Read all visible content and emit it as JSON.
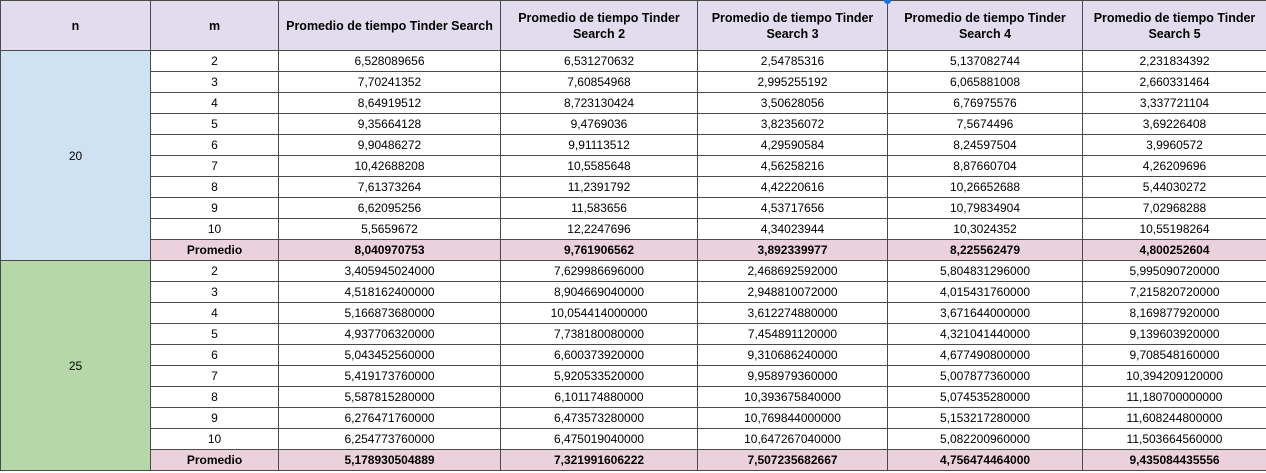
{
  "headers": {
    "n": "n",
    "m": "m",
    "cols": [
      "Promedio de tiempo Tinder Search",
      "Promedio de tiempo Tinder Search 2",
      "Promedio de tiempo Tinder Search 3",
      "Promedio de tiempo Tinder Search 4",
      "Promedio de tiempo Tinder Search 5"
    ]
  },
  "groups": [
    {
      "n": "20",
      "rows": [
        {
          "m": "2",
          "v": [
            "6,528089656",
            "6,531270632",
            "2,54785316",
            "5,137082744",
            "2,231834392"
          ]
        },
        {
          "m": "3",
          "v": [
            "7,70241352",
            "7,60854968",
            "2,995255192",
            "6,065881008",
            "2,660331464"
          ]
        },
        {
          "m": "4",
          "v": [
            "8,64919512",
            "8,723130424",
            "3,50628056",
            "6,76975576",
            "3,337721104"
          ]
        },
        {
          "m": "5",
          "v": [
            "9,35664128",
            "9,4769036",
            "3,82356072",
            "7,5674496",
            "3,69226408"
          ]
        },
        {
          "m": "6",
          "v": [
            "9,90486272",
            "9,91113512",
            "4,29590584",
            "8,24597504",
            "3,9960572"
          ]
        },
        {
          "m": "7",
          "v": [
            "10,42688208",
            "10,5585648",
            "4,56258216",
            "8,87660704",
            "4,26209696"
          ]
        },
        {
          "m": "8",
          "v": [
            "7,61373264",
            "11,2391792",
            "4,42220616",
            "10,26652688",
            "5,44030272"
          ]
        },
        {
          "m": "9",
          "v": [
            "6,62095256",
            "11,583656",
            "4,53717656",
            "10,79834904",
            "7,02968288"
          ]
        },
        {
          "m": "10",
          "v": [
            "5,5659672",
            "12,2247696",
            "4,34023944",
            "10,3024352",
            "10,55198264"
          ]
        }
      ],
      "avg_label": "Promedio",
      "avg": [
        "8,040970753",
        "9,761906562",
        "3,892339977",
        "8,225562479",
        "4,800252604"
      ]
    },
    {
      "n": "25",
      "rows": [
        {
          "m": "2",
          "v": [
            "3,405945024000",
            "7,629986696000",
            "2,468692592000",
            "5,804831296000",
            "5,995090720000"
          ]
        },
        {
          "m": "3",
          "v": [
            "4,518162400000",
            "8,904669040000",
            "2,948810072000",
            "4,015431760000",
            "7,215820720000"
          ]
        },
        {
          "m": "4",
          "v": [
            "5,166873680000",
            "10,054414000000",
            "3,612274880000",
            "3,671644000000",
            "8,169877920000"
          ]
        },
        {
          "m": "5",
          "v": [
            "4,937706320000",
            "7,738180080000",
            "7,454891120000",
            "4,321041440000",
            "9,139603920000"
          ]
        },
        {
          "m": "6",
          "v": [
            "5,043452560000",
            "6,600373920000",
            "9,310686240000",
            "4,677490800000",
            "9,708548160000"
          ]
        },
        {
          "m": "7",
          "v": [
            "5,419173760000",
            "5,920533520000",
            "9,958979360000",
            "5,007877360000",
            "10,394209120000"
          ]
        },
        {
          "m": "8",
          "v": [
            "5,587815280000",
            "6,101174880000",
            "10,393675840000",
            "5,074535280000",
            "11,180700000000"
          ]
        },
        {
          "m": "9",
          "v": [
            "6,276471760000",
            "6,473573280000",
            "10,769844000000",
            "5,153217280000",
            "11,608244800000"
          ]
        },
        {
          "m": "10",
          "v": [
            "6,254773760000",
            "6,475019040000",
            "10,647267040000",
            "5,082200960000",
            "11,503664560000"
          ]
        }
      ],
      "avg_label": "Promedio",
      "avg": [
        "5,178930504889",
        "7,321991606222",
        "7,507235682667",
        "4,756474464000",
        "9,435084435556"
      ]
    }
  ]
}
